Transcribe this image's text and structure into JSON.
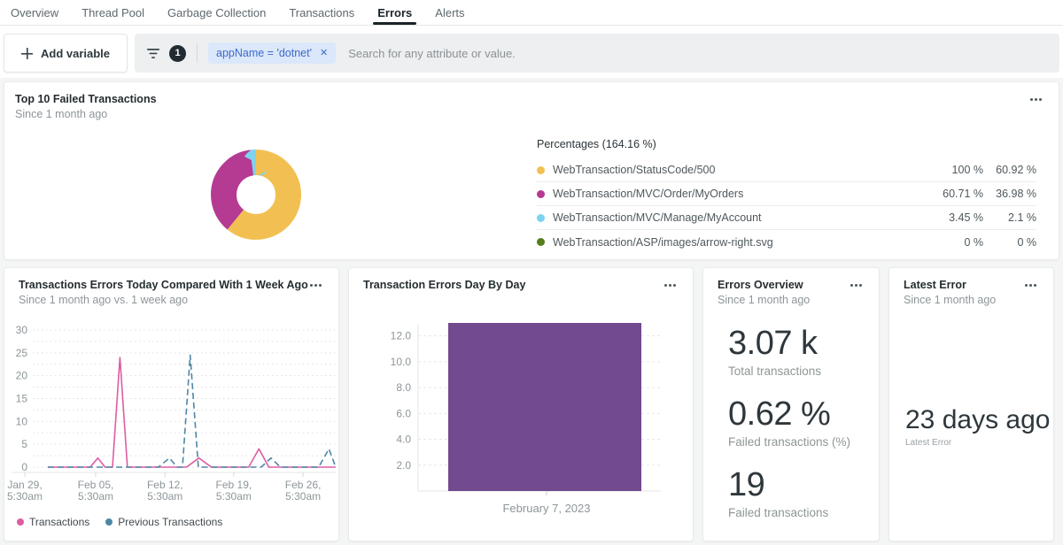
{
  "tabs": [
    {
      "label": "Overview",
      "active": false
    },
    {
      "label": "Thread Pool",
      "active": false
    },
    {
      "label": "Garbage Collection",
      "active": false
    },
    {
      "label": "Transactions",
      "active": false
    },
    {
      "label": "Errors",
      "active": true
    },
    {
      "label": "Alerts",
      "active": false
    }
  ],
  "filter": {
    "add_variable": "Add variable",
    "count": "1",
    "chip_text": "appName = 'dotnet'",
    "placeholder": "Search for any attribute or value."
  },
  "icons": {
    "close": "✕"
  },
  "chart_data": [
    {
      "id": "top10",
      "type": "pie",
      "title": "Top 10 Failed Transactions",
      "subtitle": "Since 1 month ago",
      "legend_title": "Percentages (164.16 %)",
      "slices": [
        {
          "name": "WebTransaction/StatusCode/500",
          "color": "#f2c052",
          "relative": "100 %",
          "of_total": "60.92 %",
          "value": 60.92
        },
        {
          "name": "WebTransaction/MVC/Order/MyOrders",
          "color": "#b43a92",
          "relative": "60.71 %",
          "of_total": "36.98 %",
          "value": 36.98
        },
        {
          "name": "WebTransaction/MVC/Manage/MyAccount",
          "color": "#7dd3f0",
          "relative": "3.45 %",
          "of_total": "2.1 %",
          "value": 2.1
        },
        {
          "name": "WebTransaction/ASP/images/arrow-right.svg",
          "color": "#567d1e",
          "relative": "0 %",
          "of_total": "0 %",
          "value": 0
        }
      ]
    },
    {
      "id": "errors_compare",
      "type": "line",
      "title": "Transactions Errors Today Compared With 1 Week Ago",
      "subtitle": "Since 1 month ago vs. 1 week ago",
      "ylim": [
        0,
        30
      ],
      "ytick_step": 5,
      "yminor_step": 2.5,
      "xticks": [
        {
          "f": 0.0,
          "l1": "Jan 29,",
          "l2": "5:30am"
        },
        {
          "f": 0.228,
          "l1": "Feb 05,",
          "l2": "5:30am"
        },
        {
          "f": 0.451,
          "l1": "Feb 12,",
          "l2": "5:30am"
        },
        {
          "f": 0.672,
          "l1": "Feb 19,",
          "l2": "5:30am"
        },
        {
          "f": 0.895,
          "l1": "Feb 26,",
          "l2": "5:30am"
        }
      ],
      "series": [
        {
          "name": "Transactions",
          "color": "#de5ca3",
          "dash": null,
          "points": [
            [
              0.074,
              0
            ],
            [
              0.21,
              0
            ],
            [
              0.235,
              2
            ],
            [
              0.258,
              0
            ],
            [
              0.282,
              0
            ],
            [
              0.306,
              24
            ],
            [
              0.33,
              0
            ],
            [
              0.52,
              0
            ],
            [
              0.56,
              2
            ],
            [
              0.6,
              0
            ],
            [
              0.72,
              0
            ],
            [
              0.753,
              4
            ],
            [
              0.785,
              0
            ],
            [
              1,
              0
            ]
          ]
        },
        {
          "name": "Previous Transactions",
          "color": "#4d87a6",
          "dash": "7 4",
          "points": [
            [
              0.074,
              0
            ],
            [
              0.43,
              0
            ],
            [
              0.465,
              2
            ],
            [
              0.49,
              0
            ],
            [
              0.507,
              0
            ],
            [
              0.532,
              24.5
            ],
            [
              0.558,
              0
            ],
            [
              0.76,
              0
            ],
            [
              0.792,
              2
            ],
            [
              0.822,
              0
            ],
            [
              0.945,
              0
            ],
            [
              0.978,
              4
            ],
            [
              1,
              0
            ]
          ]
        }
      ]
    },
    {
      "id": "day_by_day",
      "type": "bar",
      "title": "Transaction Errors Day By Day",
      "categories": [
        "February 7, 2023"
      ],
      "values": [
        13
      ],
      "color": "#714a8f",
      "ylim": [
        0,
        13
      ],
      "yticks": [
        {
          "v": 2,
          "label": "2.0"
        },
        {
          "v": 4,
          "label": "4.0"
        },
        {
          "v": 6,
          "label": "6.0"
        },
        {
          "v": 8,
          "label": "8.0"
        },
        {
          "v": 10,
          "label": "10.0"
        },
        {
          "v": 12,
          "label": "12.0"
        }
      ]
    },
    {
      "id": "errors_overview",
      "type": "billboard",
      "title": "Errors Overview",
      "subtitle": "Since 1 month ago",
      "metrics": [
        {
          "value": "3.07 k",
          "label": "Total transactions"
        },
        {
          "value": "0.62 %",
          "label": "Failed transactions (%)"
        },
        {
          "value": "19",
          "label": "Failed transactions"
        }
      ]
    },
    {
      "id": "latest_error",
      "type": "billboard",
      "title": "Latest Error",
      "subtitle": "Since 1 month ago",
      "metrics": [
        {
          "value": "23 days ago",
          "label": "Latest Error"
        }
      ]
    }
  ]
}
